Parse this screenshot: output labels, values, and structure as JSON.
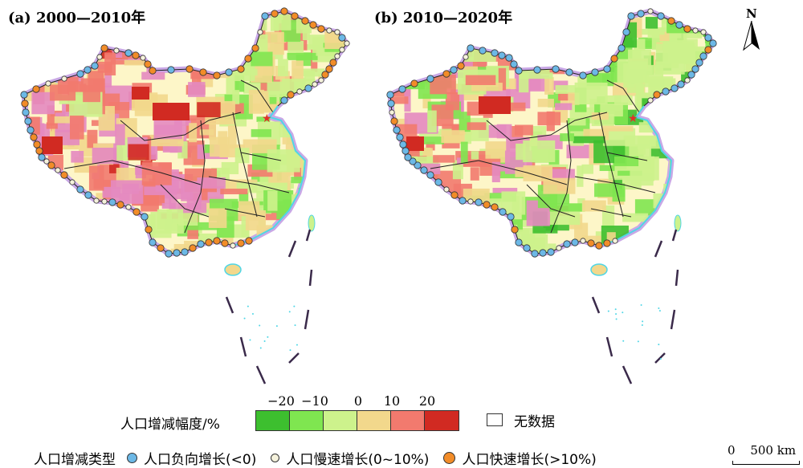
{
  "panels": [
    {
      "title": "(a) 2000—2010年"
    },
    {
      "title": "(b) 2010—2020年"
    }
  ],
  "north_label": "N",
  "legend": {
    "scale_label": "人口增减幅度/%",
    "ticks": [
      "−20",
      "−10",
      "0",
      "10",
      "20"
    ],
    "bins": [
      {
        "range": "< −20",
        "color": "#3dbf2f"
      },
      {
        "range": "−20 ~ −10",
        "color": "#7fe650"
      },
      {
        "range": "−10 ~ 0",
        "color": "#cdf28c"
      },
      {
        "range": "0 ~ 10",
        "color": "#f2d88c"
      },
      {
        "range": "10 ~ 20",
        "color": "#f27a6e"
      },
      {
        "range": "> 20",
        "color": "#d12a22"
      }
    ],
    "nodata_label": "无数据",
    "type_title": "人口增减类型",
    "types": [
      {
        "label": "人口负向增长(<0)",
        "color": "#6cb8e6"
      },
      {
        "label": "人口慢速增长(0~10%)",
        "color": "#f5f2dc"
      },
      {
        "label": "人口快速增长(>10%)",
        "color": "#f28c28"
      }
    ],
    "scalebar": {
      "left": "0",
      "right": "500 km"
    }
  },
  "colors": {
    "border_glow": "#c9a8e6",
    "coast_cyan": "#4fd6e6",
    "capital_star": "#e0302a",
    "dash_line": "#3a2a4a"
  }
}
